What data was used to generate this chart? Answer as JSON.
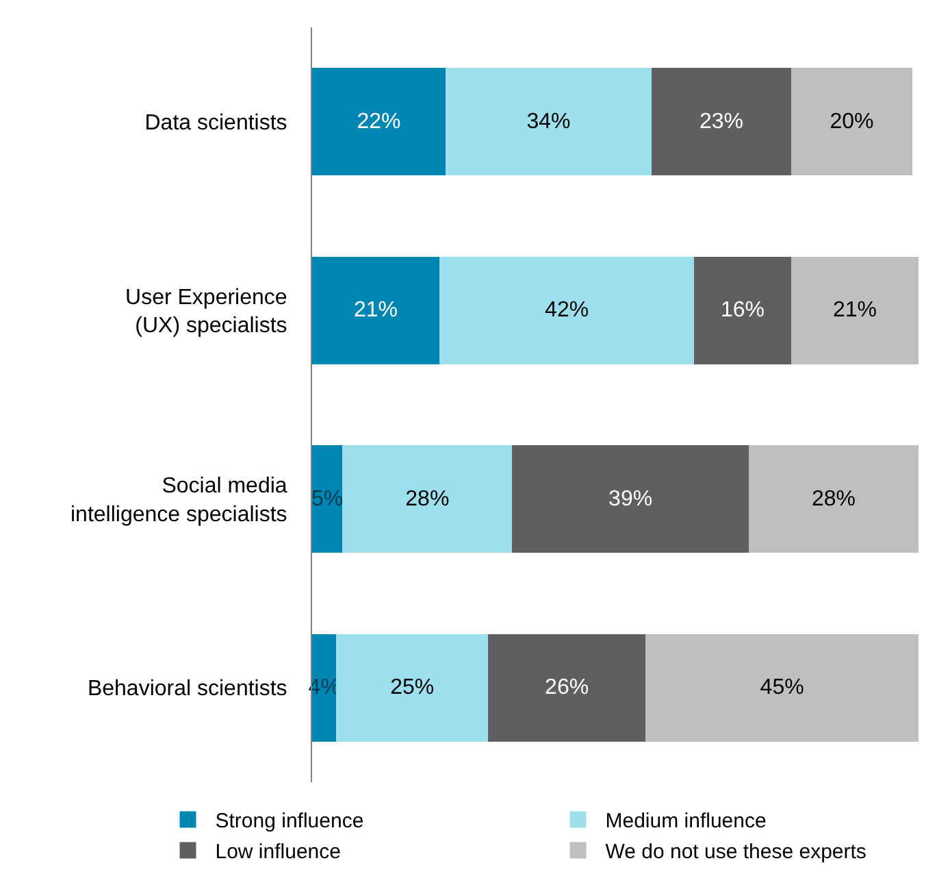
{
  "chart_data": {
    "type": "bar",
    "orientation": "horizontal",
    "stacked": true,
    "xlim": [
      0,
      100
    ],
    "tick_labels": "y",
    "legend": "bottom",
    "categories": [
      "Data scientists",
      "User Experience\n(UX) specialists",
      "Social media\nintelligence specialists",
      "Behavioral scientists"
    ],
    "series": [
      {
        "name": "Strong influence",
        "color": "#0086b3",
        "values": [
          22,
          21,
          5,
          4
        ],
        "value_labels": [
          "22%",
          "21%",
          "5%",
          "4%"
        ]
      },
      {
        "name": "Medium influence",
        "color": "#9ddfec",
        "values": [
          34,
          42,
          28,
          25
        ],
        "value_labels": [
          "34%",
          "42%",
          "28%",
          "25%"
        ]
      },
      {
        "name": "Low influence",
        "color": "#5f5f5f",
        "values": [
          23,
          16,
          39,
          26
        ],
        "value_labels": [
          "23%",
          "16%",
          "39%",
          "26%"
        ]
      },
      {
        "name": "We do not use these experts",
        "color": "#bfbfbf",
        "values": [
          20,
          21,
          28,
          45
        ],
        "value_labels": [
          "20%",
          "21%",
          "28%",
          "45%"
        ]
      }
    ]
  }
}
